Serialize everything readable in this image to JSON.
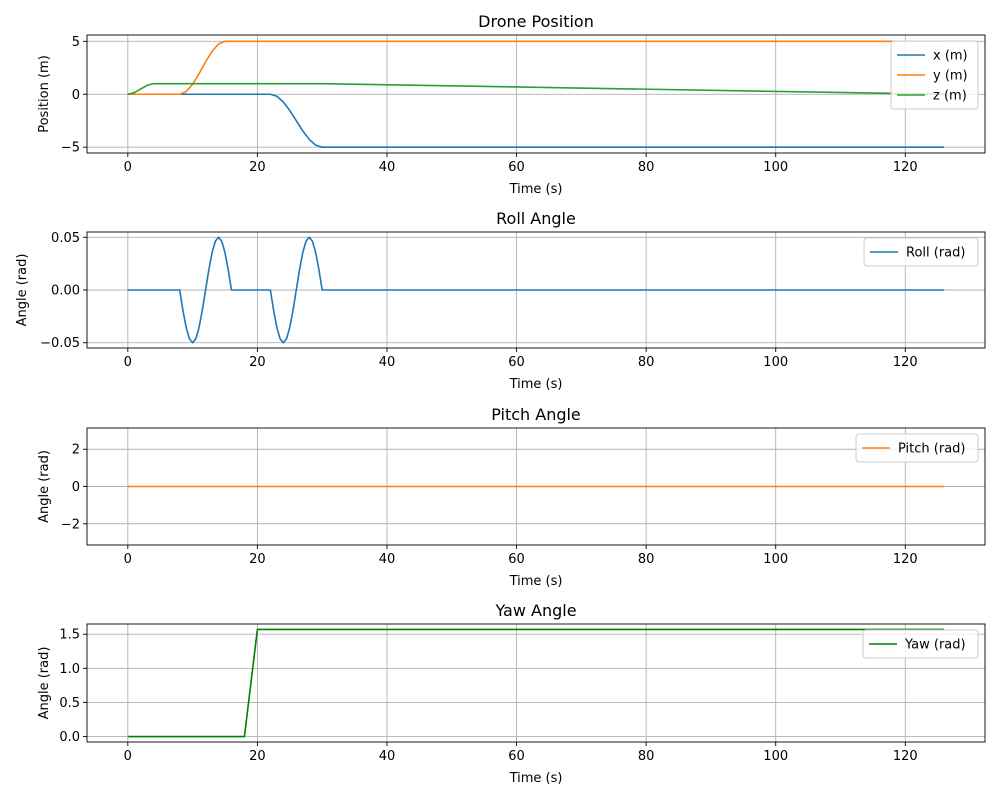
{
  "chart_data": [
    {
      "type": "line",
      "title": "Drone Position",
      "xlabel": "Time (s)",
      "ylabel": "Position (m)",
      "xlim": [
        -6.3,
        132.3
      ],
      "ylim": [
        -5.55,
        5.6
      ],
      "xticks": [
        0,
        20,
        40,
        60,
        80,
        100,
        120
      ],
      "yticks": [
        -5,
        0,
        5
      ],
      "grid": true,
      "legend": "upper-right",
      "series": [
        {
          "name": "x (m)",
          "color": "#1f77b4",
          "x": [
            0,
            22,
            23,
            24,
            25,
            26,
            27,
            28,
            29,
            30,
            126
          ],
          "y": [
            0,
            0,
            -0.19,
            -0.73,
            -1.54,
            -2.5,
            -3.46,
            -4.27,
            -4.81,
            -5,
            -5
          ]
        },
        {
          "name": "y (m)",
          "color": "#ff7f0e",
          "x": [
            0,
            8,
            9,
            10,
            11,
            12,
            13,
            14,
            15,
            126
          ],
          "y": [
            0,
            0,
            0.25,
            0.94,
            1.94,
            3.06,
            4.06,
            4.75,
            5,
            5
          ]
        },
        {
          "name": "z (m)",
          "color": "#2ca02c",
          "x": [
            0,
            1,
            2,
            3,
            4,
            30,
            126
          ],
          "y": [
            0,
            0.15,
            0.5,
            0.85,
            1,
            1,
            0
          ]
        }
      ]
    },
    {
      "type": "line",
      "title": "Roll Angle",
      "xlabel": "Time (s)",
      "ylabel": "Angle (rad)",
      "xlim": [
        -6.3,
        132.3
      ],
      "ylim": [
        -0.055,
        0.055
      ],
      "xticks": [
        0,
        20,
        40,
        60,
        80,
        100,
        120
      ],
      "yticks": [
        -0.05,
        0.0,
        0.05
      ],
      "ytick_labels": [
        "−0.05",
        "0.00",
        "0.05"
      ],
      "grid": true,
      "legend": "upper-right",
      "series": [
        {
          "name": "Roll (rad)",
          "color": "#1f77b4",
          "x": [
            0,
            8,
            8.5,
            9,
            9.5,
            10,
            10.5,
            11,
            11.5,
            12,
            12.5,
            13,
            13.5,
            14,
            14.5,
            15,
            15.5,
            16,
            22,
            22.5,
            23,
            23.5,
            24,
            24.5,
            25,
            25.5,
            26,
            26.5,
            27,
            27.5,
            28,
            28.5,
            29,
            29.5,
            30,
            126
          ],
          "y": [
            0,
            0,
            -0.0191,
            -0.0354,
            -0.0462,
            -0.05,
            -0.0462,
            -0.0354,
            -0.0191,
            0,
            0.0191,
            0.0354,
            0.0462,
            0.05,
            0.0462,
            0.0354,
            0.0191,
            0,
            0,
            -0.0191,
            -0.0354,
            -0.0462,
            -0.05,
            -0.0462,
            -0.0354,
            -0.0191,
            0,
            0.0191,
            0.0354,
            0.0462,
            0.05,
            0.0462,
            0.0354,
            0.0191,
            0,
            0
          ]
        }
      ]
    },
    {
      "type": "line",
      "title": "Pitch Angle",
      "xlabel": "Time (s)",
      "ylabel": "Angle (rad)",
      "xlim": [
        -6.3,
        132.3
      ],
      "ylim": [
        -3.14,
        3.14
      ],
      "xticks": [
        0,
        20,
        40,
        60,
        80,
        100,
        120
      ],
      "yticks": [
        -2,
        0,
        2
      ],
      "ytick_labels": [
        "−2",
        "0",
        "2"
      ],
      "grid": true,
      "legend": "upper-right",
      "series": [
        {
          "name": "Pitch (rad)",
          "color": "#ff7f0e",
          "x": [
            0,
            126
          ],
          "y": [
            0,
            0
          ]
        }
      ]
    },
    {
      "type": "line",
      "title": "Yaw Angle",
      "xlabel": "Time (s)",
      "ylabel": "Angle (rad)",
      "xlim": [
        -6.3,
        132.3
      ],
      "ylim": [
        -0.08,
        1.65
      ],
      "xticks": [
        0,
        20,
        40,
        60,
        80,
        100,
        120
      ],
      "yticks": [
        0.0,
        0.5,
        1.0,
        1.5
      ],
      "ytick_labels": [
        "0.0",
        "0.5",
        "1.0",
        "1.5"
      ],
      "grid": true,
      "legend": "upper-right",
      "series": [
        {
          "name": "Yaw (rad)",
          "color": "#008000",
          "x": [
            0,
            18,
            20,
            126
          ],
          "y": [
            0,
            0,
            1.5708,
            1.5708
          ]
        }
      ]
    }
  ]
}
